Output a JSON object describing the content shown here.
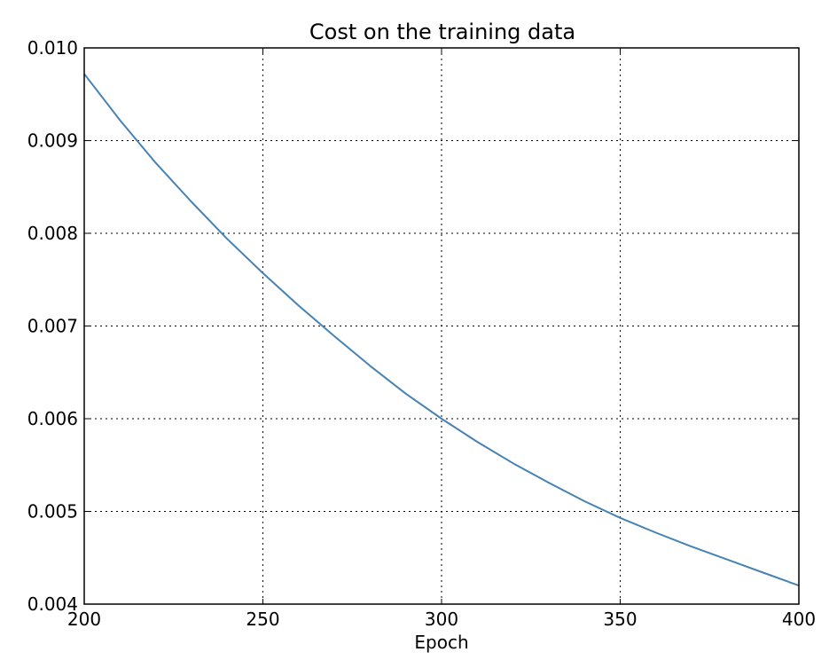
{
  "chart_data": {
    "type": "line",
    "title": "Cost on the training data",
    "xlabel": "Epoch",
    "ylabel": "",
    "xlim": [
      200,
      400
    ],
    "ylim": [
      0.004,
      0.01
    ],
    "grid": true,
    "xticks": [
      200,
      250,
      300,
      350,
      400
    ],
    "xtick_labels": [
      "200",
      "250",
      "300",
      "350",
      "400"
    ],
    "yticks": [
      0.004,
      0.005,
      0.006,
      0.007,
      0.008,
      0.009,
      0.01
    ],
    "ytick_labels": [
      "0.004",
      "0.005",
      "0.006",
      "0.007",
      "0.008",
      "0.009",
      "0.010"
    ],
    "series": [
      {
        "color": "#4682b4",
        "x": [
          200,
          210,
          220,
          230,
          240,
          250,
          260,
          270,
          280,
          290,
          300,
          310,
          320,
          330,
          340,
          350,
          360,
          370,
          380,
          390,
          400
        ],
        "y": [
          0.00972,
          0.00922,
          0.00876,
          0.00834,
          0.00794,
          0.00757,
          0.00722,
          0.00689,
          0.00657,
          0.00627,
          0.006,
          0.00575,
          0.00552,
          0.00531,
          0.00511,
          0.00493,
          0.00477,
          0.00462,
          0.00448,
          0.00434,
          0.0042
        ]
      }
    ]
  }
}
